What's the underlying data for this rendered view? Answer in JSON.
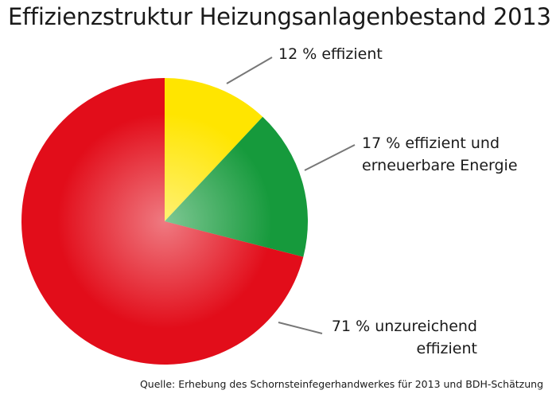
{
  "chart_data": {
    "type": "pie",
    "title": "Effizienzstruktur Heizungsanlagenbestand 2013",
    "source": "Quelle: Erhebung des Schornsteinfegerhandwerkes für 2013 und BDH-Schätzung",
    "categories": [
      "effizient",
      "effizient und erneuerbare Energie",
      "unzureichend effizient"
    ],
    "values": [
      12,
      17,
      71
    ],
    "value_labels": [
      "12 %",
      "17 %",
      "71 %"
    ],
    "colors": [
      "#ffe500",
      "#169a3c",
      "#e20d1a"
    ]
  }
}
